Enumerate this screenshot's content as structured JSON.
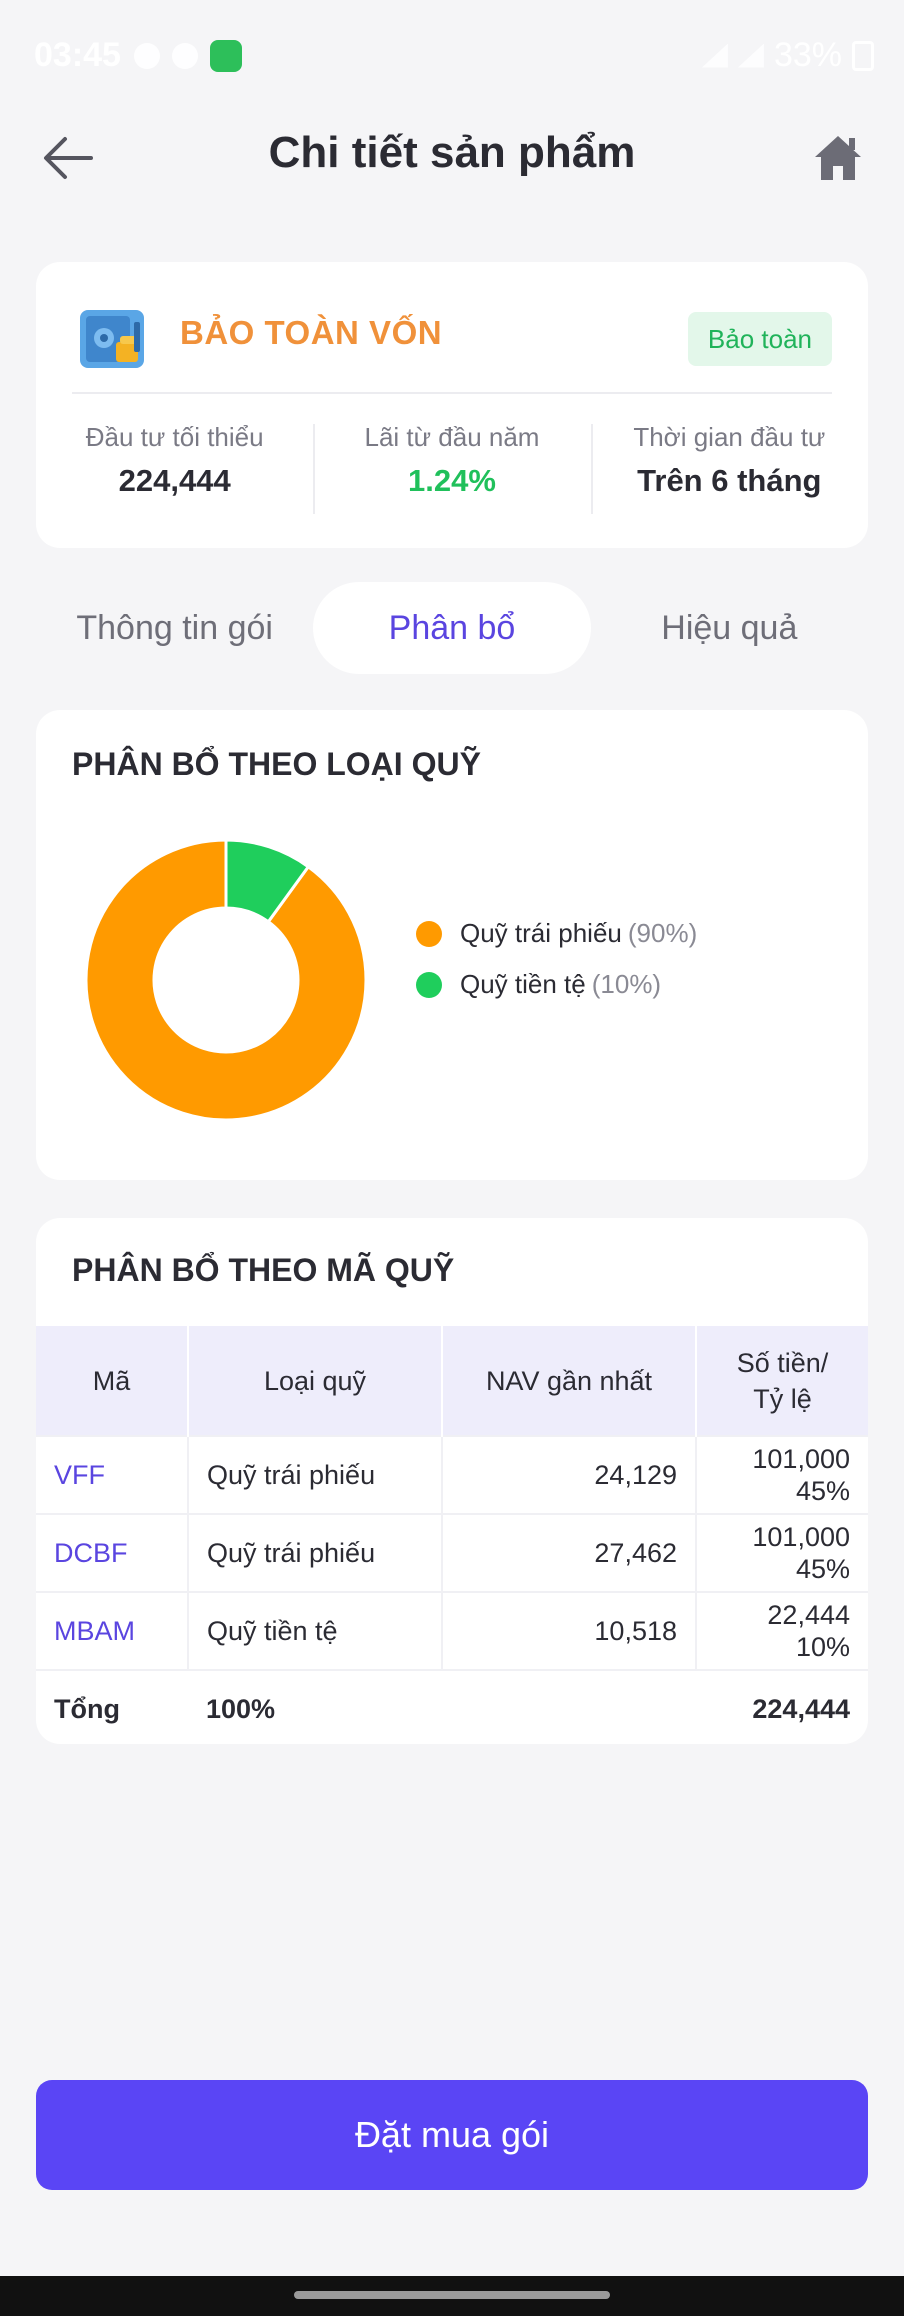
{
  "status_bar": {
    "time": "03:45",
    "battery": "33%"
  },
  "header": {
    "title": "Chi tiết sản phẩm"
  },
  "product": {
    "name": "BẢO TOÀN VỐN",
    "badge": "Bảo toàn",
    "stats": [
      {
        "label": "Đầu tư tối thiểu",
        "value": "224,444"
      },
      {
        "label": "Lãi từ đầu năm",
        "value": "1.24%"
      },
      {
        "label": "Thời gian đầu tư",
        "value": "Trên 6 tháng"
      }
    ]
  },
  "tabs": [
    {
      "label": "Thông tin gói"
    },
    {
      "label": "Phân bổ"
    },
    {
      "label": "Hiệu quả"
    }
  ],
  "allocation_by_type": {
    "title": "PHÂN BỔ THEO LOẠI QUỸ",
    "legend": [
      {
        "name": "Quỹ trái phiếu",
        "pct": "(90%)"
      },
      {
        "name": "Quỹ tiền tệ",
        "pct": "(10%)"
      }
    ]
  },
  "chart_data": {
    "type": "pie",
    "categories": [
      "Quỹ trái phiếu",
      "Quỹ tiền tệ"
    ],
    "values": [
      90,
      10
    ],
    "colors": [
      "#ff9a00",
      "#1fce5c"
    ]
  },
  "allocation_by_code": {
    "title": "PHÂN BỔ THEO MÃ QUỸ",
    "headers": {
      "code": "Mã",
      "type": "Loại quỹ",
      "nav": "NAV gần nhất",
      "amount_line1": "Số tiền/",
      "amount_line2": "Tỷ lệ"
    },
    "rows": [
      {
        "code": "VFF",
        "type": "Quỹ trái phiếu",
        "nav": "24,129",
        "amount": "101,000",
        "ratio": "45%"
      },
      {
        "code": "DCBF",
        "type": "Quỹ trái phiếu",
        "nav": "27,462",
        "amount": "101,000",
        "ratio": "45%"
      },
      {
        "code": "MBAM",
        "type": "Quỹ tiền tệ",
        "nav": "10,518",
        "amount": "22,444",
        "ratio": "10%"
      }
    ],
    "total": {
      "label": "Tổng",
      "pct": "100%",
      "amount": "224,444"
    }
  },
  "cta": {
    "label": "Đặt mua gói"
  },
  "colors": {
    "accent": "#5a45f5",
    "orange": "#ff9a00",
    "green": "#1fce5c",
    "title_orange": "#f0913a"
  }
}
